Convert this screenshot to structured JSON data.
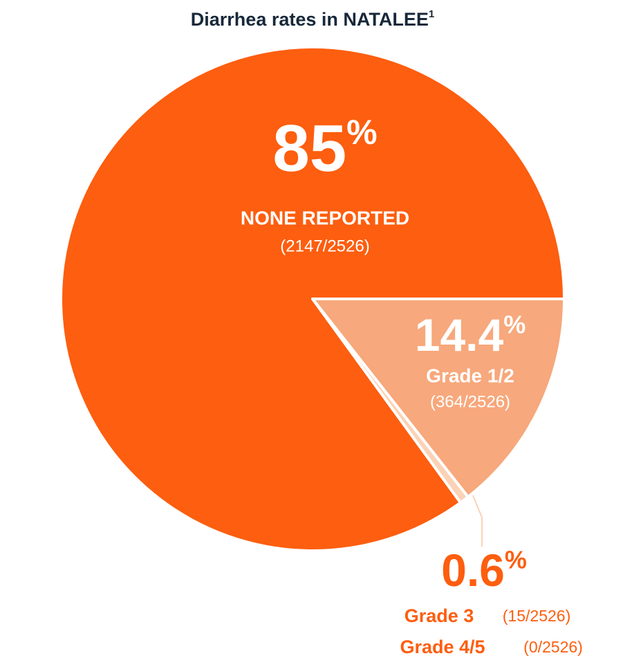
{
  "chart_data": {
    "type": "pie",
    "title": "Diarrhea rates in NATALEE",
    "title_superscript": "1",
    "values": [
      85,
      14.4,
      0.6
    ],
    "value_labels": [
      "85%",
      "14.4%",
      "0.6%"
    ],
    "colors": [
      "#fd5e0f",
      "#f7a87c",
      "#fbd2b6"
    ],
    "details": [
      [
        {
          "label": "NONE REPORTED",
          "count": "(2147/2526)"
        }
      ],
      [
        {
          "label": "Grade 1/2",
          "count": "(364/2526)"
        }
      ],
      [
        {
          "label": "Grade 3",
          "count": "(15/2526)"
        },
        {
          "label": "Grade 4/5",
          "count": "(0/2526)"
        }
      ]
    ]
  }
}
